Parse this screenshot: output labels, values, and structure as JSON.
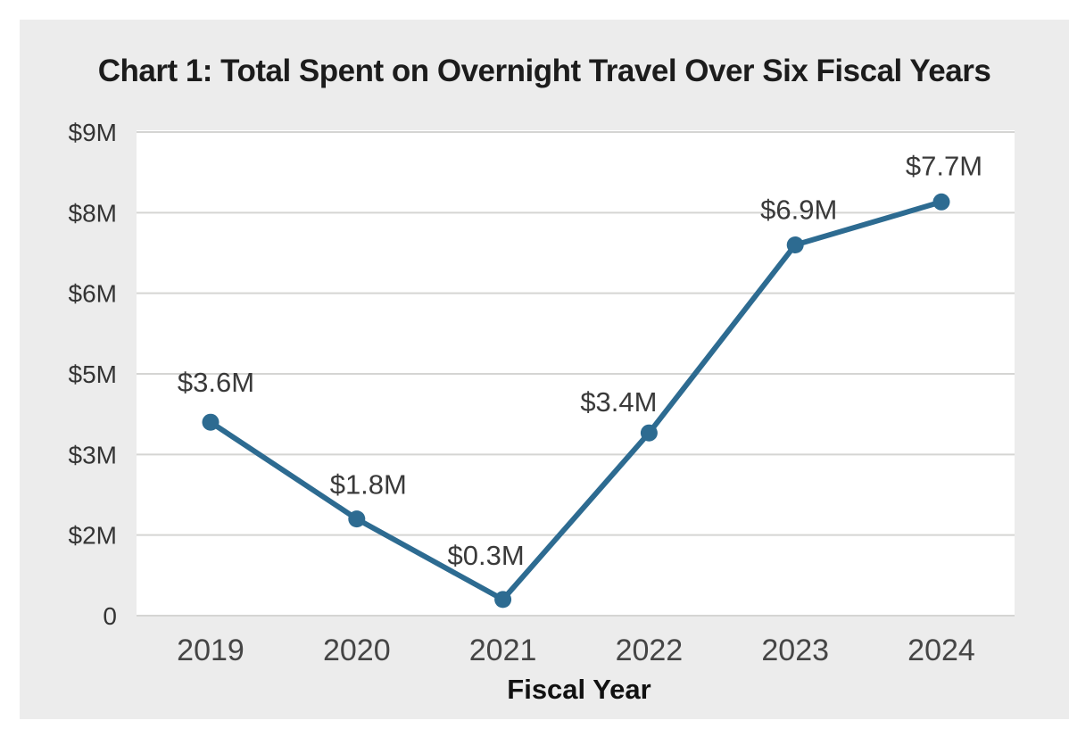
{
  "page": {
    "background": "#ffffff",
    "card_background": "#ececec"
  },
  "chart_data": {
    "type": "line",
    "title": "Chart 1: Total Spent on Overnight Travel Over Six Fiscal Years",
    "xlabel": "Fiscal Year",
    "ylabel": "",
    "categories": [
      "2019",
      "2020",
      "2021",
      "2022",
      "2023",
      "2024"
    ],
    "series": [
      {
        "name": "Total Spent on Overnight Travel ($M)",
        "values": [
          3.6,
          1.8,
          0.3,
          3.4,
          6.9,
          7.7
        ]
      }
    ],
    "point_labels": [
      "$3.6M",
      "$1.8M",
      "$0.3M",
      "$3.4M",
      "$6.9M",
      "$7.7M"
    ],
    "y_tick_labels": [
      "$9M",
      "$8M",
      "$6M",
      "$5M",
      "$3M",
      "$2M",
      "0"
    ],
    "y_tick_values": [
      9,
      8,
      6,
      5,
      3,
      2,
      0
    ],
    "y_ticks_evenly_spaced": true,
    "ylim": [
      0,
      9
    ],
    "grid": "horizontal",
    "legend": "none",
    "marker": "circle",
    "colors": {
      "line": "#2d6b91",
      "marker": "#2d6b91",
      "gridline": "#d5d5d3",
      "plot_background": "#ffffff",
      "card_background": "#ececec",
      "title_text": "#1c1c1c",
      "y_tick_text": "#343434",
      "x_tick_text": "#454545",
      "data_label_text": "#3a3a3a",
      "x_axis_title_text": "#111111"
    }
  }
}
